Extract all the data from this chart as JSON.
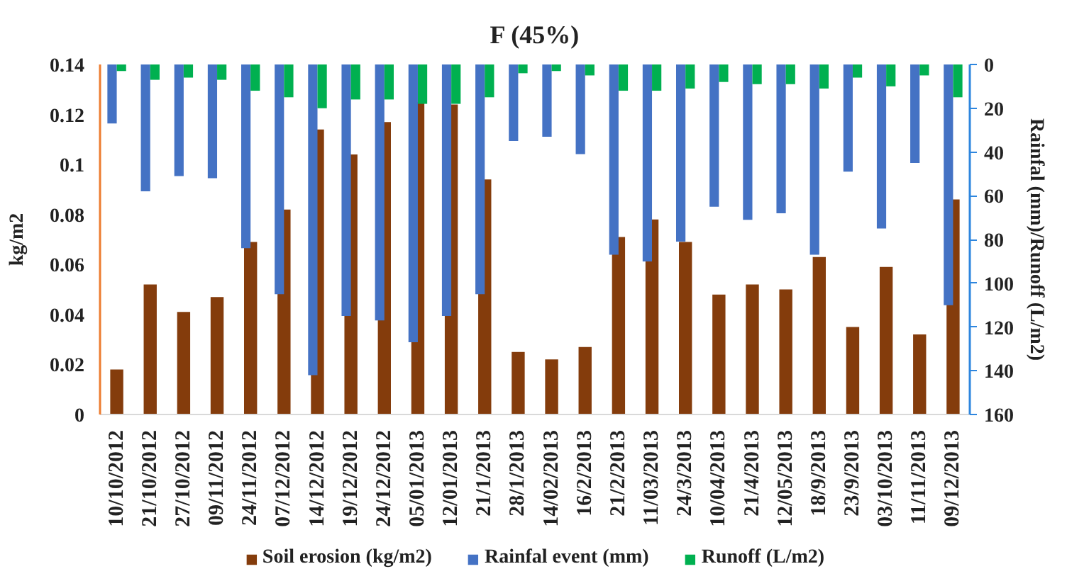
{
  "chart_data": {
    "type": "bar",
    "title": "F (45%)",
    "ylabel": "kg/m2",
    "y2label": "Rainfal (mm)/Runoff (L/m2)",
    "categories": [
      "10/10/2012",
      "21/10/2012",
      "27/10/2012",
      "09/11/2012",
      "24/11/2012",
      "07/12/2012",
      "14/12/2012",
      "19/12/2012",
      "24/12/2012",
      "05/01/2013",
      "12/01/2013",
      "21/1/2013",
      "28/1/2013",
      "14/02/2013",
      "16/2/2013",
      "21/2/2013",
      "11/03/2013",
      "24/3/2013",
      "10/04/2013",
      "21/4/2013",
      "12/05/2013",
      "18/9/2013",
      "23/9/2013",
      "03/10/2013",
      "11/11/2013",
      "09/12/2013"
    ],
    "series": [
      {
        "name": "Soil erosion (kg/m2)",
        "color": "#843c0c",
        "values": [
          0.018,
          0.052,
          0.041,
          0.047,
          0.069,
          0.082,
          0.114,
          0.104,
          0.117,
          0.125,
          0.124,
          0.094,
          0.025,
          0.022,
          0.027,
          0.071,
          0.078,
          0.069,
          0.048,
          0.052,
          0.05,
          0.063,
          0.035,
          0.059,
          0.032,
          0.086
        ]
      },
      {
        "name": "Rainfal event (mm)",
        "color": "#4472c4",
        "axis": "y2",
        "values": [
          27,
          58,
          51,
          52,
          84,
          105,
          142,
          115,
          117,
          127,
          115,
          105,
          35,
          33,
          41,
          87,
          90,
          81,
          65,
          71,
          68,
          87,
          49,
          75,
          45,
          110
        ]
      },
      {
        "name": "Runoff (L/m2)",
        "color": "#00b050",
        "axis": "y2",
        "values": [
          3,
          7,
          6,
          7,
          12,
          15,
          20,
          16,
          16,
          18,
          18,
          15,
          4,
          3,
          5,
          12,
          12,
          11,
          8,
          9,
          9,
          11,
          6,
          10,
          5,
          15
        ]
      }
    ],
    "ylim": [
      0,
      0.14
    ],
    "yticks": [
      0,
      0.02,
      0.04,
      0.06,
      0.08,
      0.1,
      0.12,
      0.14
    ],
    "y2lim": [
      160,
      0
    ],
    "y2ticks": [
      0,
      20,
      40,
      60,
      80,
      100,
      120,
      140,
      160
    ],
    "legend": "bottom",
    "grid": false
  }
}
